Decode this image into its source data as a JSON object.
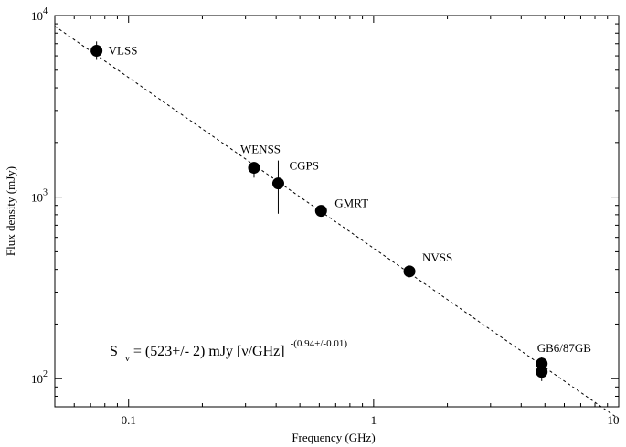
{
  "chart_data": {
    "type": "scatter",
    "title": "",
    "xlabel": "Frequency  (GHz)",
    "ylabel": "Flux density  (mJy)",
    "x_scale": "log",
    "y_scale": "log",
    "xlim": [
      0.05,
      10
    ],
    "ylim": [
      70,
      10000
    ],
    "x_ticks": [
      {
        "value": 0.1,
        "label": "0.1"
      },
      {
        "value": 1,
        "label": "1"
      },
      {
        "value": 10,
        "label": "10"
      }
    ],
    "y_ticks": [
      {
        "value": 100,
        "label": "10",
        "exp": "2"
      },
      {
        "value": 1000,
        "label": "10",
        "exp": "3"
      },
      {
        "value": 10000,
        "label": "10",
        "exp": "4"
      }
    ],
    "grid": false,
    "series": [
      {
        "points": [
          {
            "x": 0.074,
            "y": 6400,
            "err_lo": 5700,
            "err_hi": 7200,
            "label": "VLSS"
          },
          {
            "x": 0.325,
            "y": 1450,
            "err_lo": 1280,
            "err_hi": 1560,
            "label": "WENSS"
          },
          {
            "x": 0.408,
            "y": 1190,
            "err_lo": 810,
            "err_hi": 1590,
            "label": "CGPS"
          },
          {
            "x": 0.61,
            "y": 840,
            "err_lo": 790,
            "err_hi": 890,
            "label": "GMRT"
          },
          {
            "x": 1.4,
            "y": 390,
            "err_lo": 370,
            "err_hi": 410,
            "label": "NVSS"
          },
          {
            "x": 4.85,
            "y": 121,
            "err_lo": 110,
            "err_hi": 132,
            "label": "GB6/87GB"
          },
          {
            "x": 4.85,
            "y": 109,
            "err_lo": 97,
            "err_hi": 119,
            "label": ""
          }
        ]
      }
    ],
    "fit": {
      "style": "dashed",
      "normalization": 523,
      "index": -0.94,
      "equation": {
        "main": "S",
        "sub": "ν",
        "rest": " = (523+/- 2) mJy [ν/GHz]",
        "sup": "-(0.94+/-0.01)"
      }
    }
  }
}
